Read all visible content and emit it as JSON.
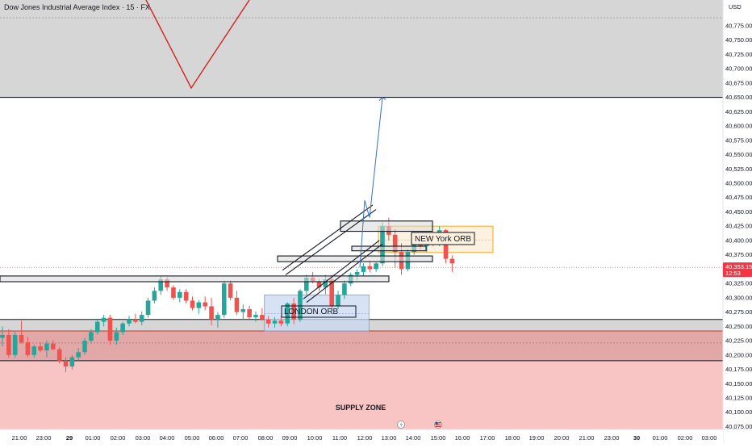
{
  "title": "Dow Jones Industrial Average Index · 15 · FX",
  "currency": "USD",
  "colors": {
    "up": "#26a69a",
    "down": "#ef5350",
    "supply_zone": "#f9c4c4",
    "supply_zone_dark": "#e2a7a7",
    "gray_zone": "#d6d6d6",
    "london_box": "#c9d9f2",
    "ny_box": "#f5a623",
    "arrow": "#3a6fc7",
    "red_line": "#d62222",
    "price_badge": "#f23645"
  },
  "chart_data": {
    "type": "candlestick",
    "title": "Dow Jones Industrial Average Index · 15 · FX",
    "y_axis": {
      "unit": "USD",
      "min": 40070,
      "max": 40820,
      "ticks": [
        "40,775.00",
        "40,750.00",
        "40,725.00",
        "40,700.00",
        "40,675.00",
        "40,650.00",
        "40,625.00",
        "40,600.00",
        "40,575.00",
        "40,550.00",
        "40,525.00",
        "40,500.00",
        "40,475.00",
        "40,450.00",
        "40,425.00",
        "40,400.00",
        "40,375.00",
        "40,350.00",
        "40,325.00",
        "40,300.00",
        "40,275.00",
        "40,250.00",
        "40,225.00",
        "40,200.00",
        "40,175.00",
        "40,150.00",
        "40,125.00",
        "40,100.00",
        "40,075.00"
      ]
    },
    "x_axis": {
      "ticks": [
        "21:00",
        "23:00",
        "29",
        "01:00",
        "02:00",
        "03:00",
        "04:00",
        "05:00",
        "06:00",
        "07:00",
        "08:00",
        "09:00",
        "10:00",
        "11:00",
        "12:00",
        "13:00",
        "14:00",
        "15:00",
        "16:00",
        "17:00",
        "18:00",
        "19:00",
        "20:00",
        "21:00",
        "23:00",
        "30",
        "01:00",
        "02:00",
        "03:00"
      ],
      "bold_ticks": [
        "29",
        "30"
      ]
    },
    "current_price": {
      "value": "40,353.15",
      "countdown": "12:53",
      "level": 40353.15
    },
    "candles": [
      [
        40230,
        40250,
        40215,
        40235
      ],
      [
        40235,
        40245,
        40195,
        40200
      ],
      [
        40200,
        40240,
        40195,
        40235
      ],
      [
        40235,
        40260,
        40220,
        40222
      ],
      [
        40222,
        40232,
        40196,
        40200
      ],
      [
        40200,
        40218,
        40195,
        40215
      ],
      [
        40215,
        40222,
        40205,
        40208
      ],
      [
        40208,
        40225,
        40196,
        40220
      ],
      [
        40220,
        40226,
        40208,
        40210
      ],
      [
        40210,
        40214,
        40185,
        40190
      ],
      [
        40190,
        40196,
        40170,
        40180
      ],
      [
        40180,
        40200,
        40175,
        40196
      ],
      [
        40196,
        40212,
        40190,
        40205
      ],
      [
        40205,
        40230,
        40200,
        40225
      ],
      [
        40225,
        40245,
        40220,
        40240
      ],
      [
        40240,
        40262,
        40236,
        40258
      ],
      [
        40258,
        40270,
        40250,
        40265
      ],
      [
        40265,
        40270,
        40218,
        40225
      ],
      [
        40225,
        40248,
        40218,
        40240
      ],
      [
        40240,
        40258,
        40235,
        40255
      ],
      [
        40255,
        40268,
        40250,
        40262
      ],
      [
        40262,
        40272,
        40255,
        40258
      ],
      [
        40258,
        40276,
        40252,
        40270
      ],
      [
        40270,
        40300,
        40265,
        40295
      ],
      [
        40295,
        40318,
        40290,
        40312
      ],
      [
        40312,
        40338,
        40305,
        40332
      ],
      [
        40332,
        40336,
        40312,
        40318
      ],
      [
        40318,
        40322,
        40296,
        40300
      ],
      [
        40300,
        40315,
        40292,
        40310
      ],
      [
        40310,
        40315,
        40290,
        40295
      ],
      [
        40295,
        40302,
        40278,
        40282
      ],
      [
        40282,
        40296,
        40272,
        40292
      ],
      [
        40292,
        40302,
        40278,
        40285
      ],
      [
        40285,
        40300,
        40252,
        40262
      ],
      [
        40262,
        40275,
        40248,
        40270
      ],
      [
        40270,
        40330,
        40265,
        40325
      ],
      [
        40325,
        40330,
        40295,
        40300
      ],
      [
        40300,
        40312,
        40270,
        40275
      ],
      [
        40275,
        40288,
        40262,
        40280
      ],
      [
        40280,
        40286,
        40262,
        40266
      ],
      [
        40266,
        40276,
        40258,
        40270
      ],
      [
        40270,
        40282,
        40260,
        40262
      ],
      [
        40262,
        40268,
        40248,
        40255
      ],
      [
        40255,
        40266,
        40248,
        40260
      ],
      [
        40260,
        40268,
        40250,
        40255
      ],
      [
        40255,
        40292,
        40250,
        40290
      ],
      [
        40290,
        40300,
        40254,
        40262
      ],
      [
        40262,
        40315,
        40258,
        40312
      ],
      [
        40312,
        40340,
        40305,
        40335
      ],
      [
        40335,
        40345,
        40325,
        40328
      ],
      [
        40328,
        40333,
        40312,
        40318
      ],
      [
        40318,
        40340,
        40306,
        40332
      ],
      [
        40332,
        40340,
        40280,
        40285
      ],
      [
        40285,
        40312,
        40280,
        40305
      ],
      [
        40305,
        40330,
        40298,
        40325
      ],
      [
        40325,
        40344,
        40320,
        40340
      ],
      [
        40340,
        40350,
        40330,
        40345
      ],
      [
        40345,
        40360,
        40338,
        40355
      ],
      [
        40355,
        40365,
        40345,
        40350
      ],
      [
        40350,
        40362,
        40345,
        40360
      ],
      [
        40360,
        40432,
        40355,
        40425
      ],
      [
        40425,
        40440,
        40400,
        40410
      ],
      [
        40410,
        40420,
        40352,
        40380
      ],
      [
        40380,
        40395,
        40340,
        40350
      ],
      [
        40350,
        40385,
        40346,
        40380
      ],
      [
        40380,
        40400,
        40375,
        40395
      ],
      [
        40395,
        40405,
        40385,
        40390
      ],
      [
        40390,
        40402,
        40380,
        40398
      ],
      [
        40398,
        40408,
        40390,
        40395
      ],
      [
        40395,
        40425,
        40390,
        40418
      ],
      [
        40418,
        40420,
        40360,
        40368
      ],
      [
        40368,
        40374,
        40345,
        40360
      ]
    ],
    "zones": [
      {
        "name": "resistance-zone",
        "top": 40820,
        "bottom": 40650
      },
      {
        "name": "supply-zone",
        "label": "SUPPLY ZONE",
        "top": 40242,
        "bottom": 40070
      },
      {
        "name": "supply-zone-core",
        "top": 40242,
        "bottom": 40190
      },
      {
        "name": "gray-band",
        "top": 40262,
        "bottom": 40242
      }
    ],
    "annotations": [
      {
        "name": "london-orb",
        "label": "LONDON ORB"
      },
      {
        "name": "new-york-orb",
        "label": "NEW York ORB"
      }
    ]
  }
}
